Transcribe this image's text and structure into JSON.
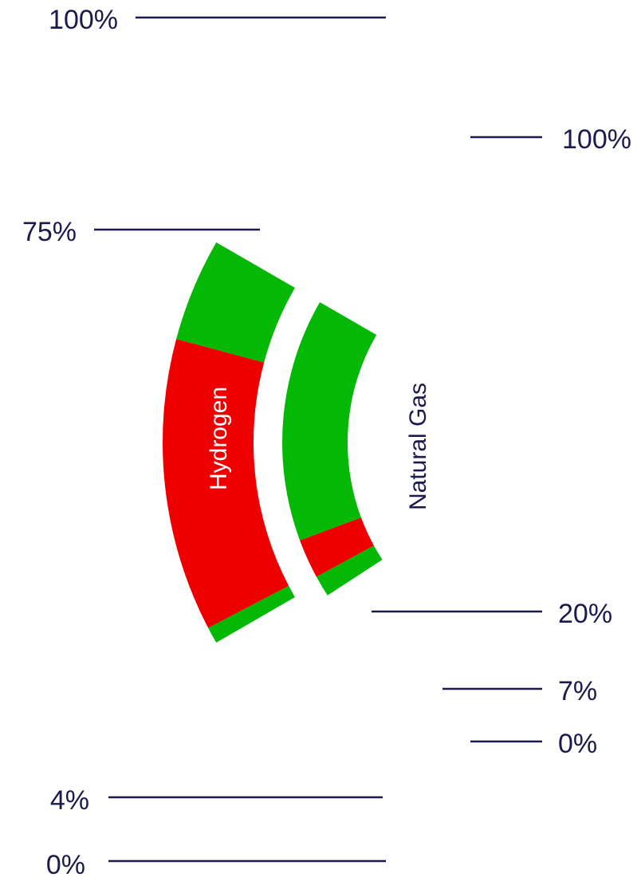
{
  "chart_data": {
    "type": "arc-bands",
    "colors": {
      "green": "#06b806",
      "red": "#ee0000",
      "leader": "#1a1a4e",
      "label_hydrogen": "#ffffff",
      "label_gas": "#1a1a4e"
    },
    "series": [
      {
        "name": "Hydrogen",
        "segments": [
          {
            "from": 0,
            "to": 4,
            "color": "green"
          },
          {
            "from": 4,
            "to": 75,
            "color": "red"
          },
          {
            "from": 75,
            "to": 100,
            "color": "green"
          }
        ],
        "tick_labels": [
          "0%",
          "4%",
          "75%",
          "100%"
        ],
        "ticks": [
          0,
          4,
          75,
          100
        ]
      },
      {
        "name": "Natural Gas",
        "segments": [
          {
            "from": 0,
            "to": 7,
            "color": "green"
          },
          {
            "from": 7,
            "to": 20,
            "color": "red"
          },
          {
            "from": 20,
            "to": 100,
            "color": "green"
          }
        ],
        "tick_labels": [
          "0%",
          "7%",
          "20%",
          "100%"
        ],
        "ticks": [
          0,
          7,
          20,
          100
        ]
      }
    ]
  }
}
